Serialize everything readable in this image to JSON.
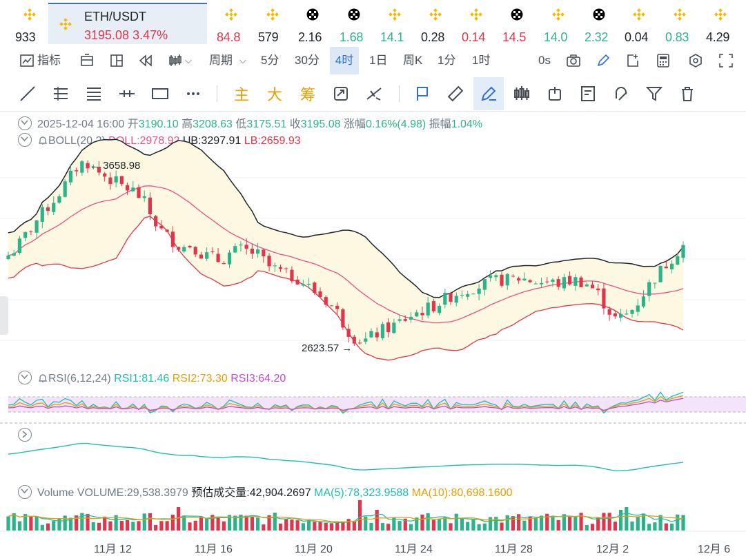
{
  "tickers": [
    {
      "price": "933",
      "icon": "binance-icon",
      "trend": "neu"
    },
    {
      "price": "84.8",
      "icon": "binance-icon",
      "trend": "down"
    },
    {
      "price": "579",
      "icon": "binance-icon",
      "trend": "neu"
    },
    {
      "price": "2.16",
      "icon": "okx-icon",
      "trend": "neu"
    },
    {
      "price": "1.68",
      "icon": "okx-icon",
      "trend": "up"
    },
    {
      "price": "14.1",
      "icon": "binance-icon",
      "trend": "up"
    },
    {
      "price": "0.28",
      "icon": "binance-icon",
      "trend": "neu"
    },
    {
      "price": "0.14",
      "icon": "binance-icon",
      "trend": "down"
    },
    {
      "price": "14.5",
      "icon": "okx-icon",
      "trend": "down"
    },
    {
      "price": "14.0",
      "icon": "binance-icon",
      "trend": "up"
    },
    {
      "price": "2.32",
      "icon": "okx-icon",
      "trend": "up"
    },
    {
      "price": "0.04",
      "icon": "binance-icon",
      "trend": "neu"
    },
    {
      "price": "0.83",
      "icon": "binance-icon",
      "trend": "up"
    },
    {
      "price": "4.29",
      "icon": "binance-icon",
      "trend": "neu"
    }
  ],
  "active_ticker": {
    "symbol": "ETH/USDT",
    "price": "3195.08",
    "change": "3.47%"
  },
  "toolbar1": {
    "indicators": "指标",
    "period": "周期",
    "intervals": [
      "5分",
      "30分",
      "4时",
      "1日",
      "周K",
      "1分",
      "1时"
    ],
    "active_interval": "4时",
    "countdown": "0s"
  },
  "toolbar2": {
    "main": "主",
    "big": "大",
    "chip": "筹"
  },
  "ohlc": {
    "date": "2025-12-04 16:00",
    "open_label": "开",
    "open": "3190.10",
    "high_label": "高",
    "high": "3208.63",
    "low_label": "低",
    "low": "3175.51",
    "close_label": "收",
    "close": "3195.08",
    "chg_label": "涨幅",
    "chg": "0.16%(4.98)",
    "amp_label": "振幅",
    "amp": "1.04%"
  },
  "boll": {
    "label": "BOLL(20,2)",
    "mid": "BOLL:2978.92",
    "ub": "UB:3297.91",
    "lb": "LB:2659.93"
  },
  "annotations": {
    "high": "3658.98",
    "low": "2623.57"
  },
  "rsi": {
    "label": "RSI(6,12,24)",
    "rsi1": "RSI1:81.46",
    "rsi2": "RSI2:73.30",
    "rsi3": "RSI3:64.20"
  },
  "volume": {
    "label": "Volume",
    "volume": "VOLUME:29,538.3979",
    "estimate": "预估成交量:42,904.2697",
    "ma5": "MA(5):78,323.9588",
    "ma10": "MA(10):80,698.1600"
  },
  "x_labels": [
    "11月 12",
    "11月 16",
    "11月 20",
    "11月 24",
    "11月 28",
    "12月 2",
    "12月 6"
  ],
  "colors": {
    "up": "#2db38c",
    "down": "#e0354b",
    "accent": "#2f6fd6",
    "band_fill": "#fdf8e1"
  },
  "chart_data": {
    "type": "candlestick",
    "interval": "4h",
    "series_points": [
      3140,
      3190,
      3260,
      3330,
      3390,
      3450,
      3520,
      3600,
      3640,
      3590,
      3560,
      3530,
      3500,
      3480,
      3430,
      3330,
      3260,
      3220,
      3180,
      3200,
      3150,
      3130,
      3110,
      3150,
      3170,
      3160,
      3140,
      3080,
      3060,
      3030,
      3020,
      2980,
      2940,
      2900,
      2850,
      2760,
      2700,
      2690,
      2720,
      2750,
      2770,
      2800,
      2830,
      2850,
      2870,
      2900,
      2930,
      2950,
      2970,
      2980,
      3000,
      3010,
      3010,
      3020,
      3010,
      3000,
      3000,
      2990,
      3005,
      3010,
      2990,
      2950,
      2870,
      2800,
      2820,
      2870,
      2950,
      3020,
      3080,
      3140,
      3195
    ],
    "x_labels": [
      "11月 12",
      "11月 16",
      "11月 20",
      "11月 24",
      "11月 28",
      "12月 2",
      "12月 6"
    ],
    "annotated_high": 3658.98,
    "annotated_low": 2623.57
  }
}
